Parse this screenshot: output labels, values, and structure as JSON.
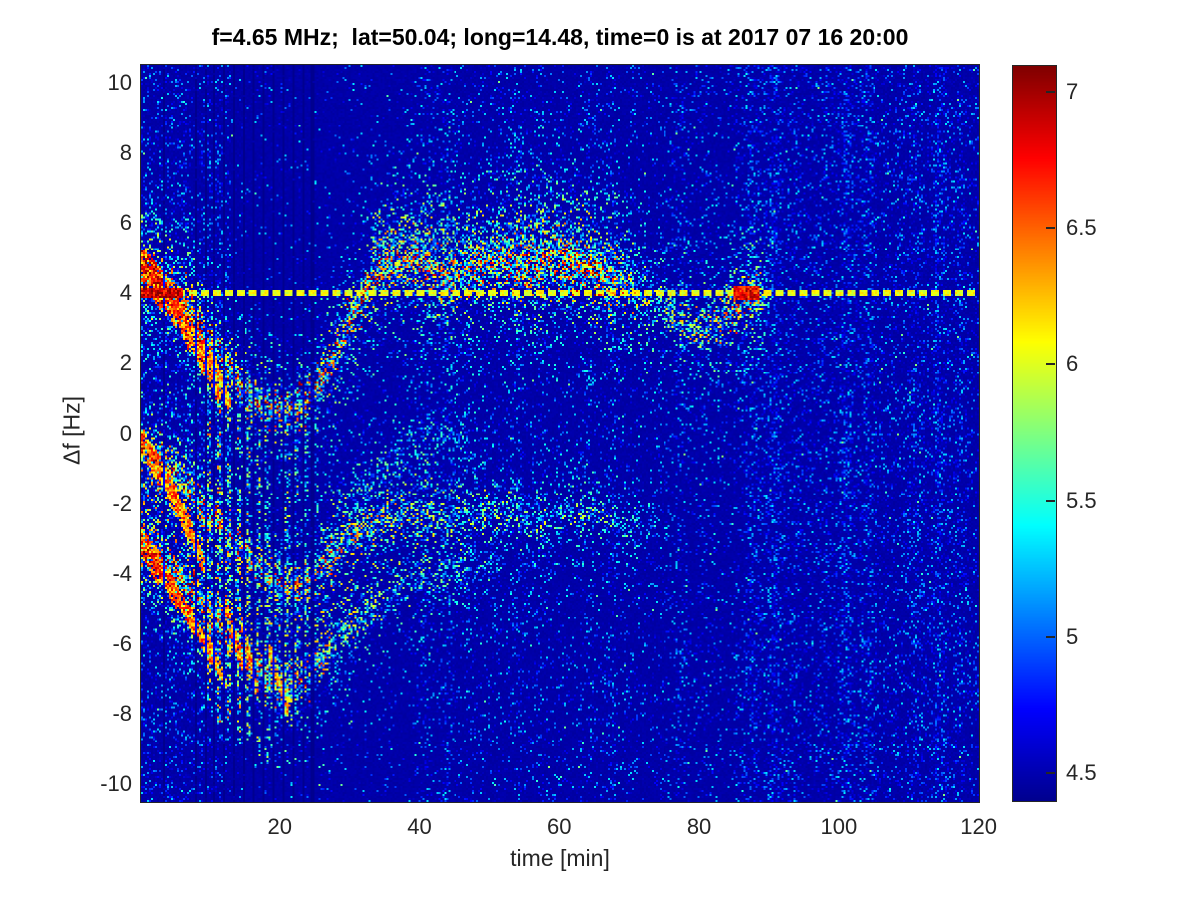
{
  "chart_data": {
    "type": "heatmap",
    "title": "f=4.65 MHz;  lat=50.04; long=14.48, time=0 is at 2017 07 16 20:00",
    "xlabel": "time [min]",
    "ylabel": "Δf [Hz]",
    "xlim": [
      0,
      120.2
    ],
    "ylim": [
      -10.53,
      10.53
    ],
    "xticks": [
      20,
      40,
      60,
      80,
      100,
      120
    ],
    "yticks": [
      10,
      8,
      6,
      4,
      2,
      0,
      -2,
      -4,
      -6,
      -8,
      -10
    ],
    "grid": false,
    "colormap": "jet",
    "caxis": [
      4.39,
      7.11
    ],
    "colorbar": {
      "position": "right",
      "ticks": [
        7,
        6.5,
        6,
        5.5,
        5,
        4.5
      ]
    },
    "background_level": 4.45,
    "carrier_line": {
      "f": 4.0,
      "style": "dashed",
      "level": 6.0,
      "description": "constant dashed reference trace at Δf = +4 Hz across full time range"
    },
    "hot_spots": [
      {
        "t_range": [
          0,
          6
        ],
        "f": 4.05,
        "half_width_hz": 0.14,
        "level": 6.8
      },
      {
        "t_range": [
          85,
          88.6
        ],
        "f": 4.0,
        "half_width_hz": 0.19,
        "level": 6.7
      }
    ],
    "traces": [
      {
        "name": "upper-o-mode-trace",
        "width_hz": 0.45,
        "points": [
          [
            0,
            4.7,
            0.95
          ],
          [
            3,
            4.4,
            0.95
          ],
          [
            6,
            3.8,
            0.95
          ],
          [
            9,
            2.9,
            0.9
          ],
          [
            12,
            2.0,
            0.9
          ],
          [
            15,
            1.2,
            0.9
          ],
          [
            18,
            0.75,
            0.9
          ],
          [
            21,
            0.6,
            0.9
          ],
          [
            24,
            1.0,
            0.9
          ],
          [
            27,
            1.9,
            0.9
          ],
          [
            30,
            3.2,
            0.85
          ],
          [
            33,
            4.4,
            0.85
          ],
          [
            36,
            4.9,
            0.8
          ],
          [
            40,
            4.8,
            0.75
          ],
          [
            44,
            4.5,
            0.7
          ],
          [
            48,
            4.7,
            0.75
          ],
          [
            52,
            4.9,
            0.75
          ],
          [
            56,
            4.7,
            0.8
          ],
          [
            60,
            5.0,
            0.85
          ],
          [
            64,
            4.7,
            0.85
          ],
          [
            67,
            4.4,
            0.8
          ],
          [
            70,
            4.1,
            0.6
          ],
          [
            73,
            3.8,
            0.5
          ],
          [
            76,
            3.4,
            0.5
          ],
          [
            79,
            3.05,
            0.55
          ],
          [
            82,
            3.1,
            0.6
          ],
          [
            85,
            3.5,
            0.75
          ],
          [
            87,
            3.9,
            0.85
          ],
          [
            89,
            4.0,
            0.6
          ],
          [
            91,
            4.0,
            0.0
          ]
        ]
      },
      {
        "name": "upper-cloud-band",
        "width_hz": 0.6,
        "points": [
          [
            33,
            5.3,
            0.35
          ],
          [
            40,
            5.5,
            0.4
          ],
          [
            47,
            5.2,
            0.35
          ],
          [
            54,
            5.6,
            0.4
          ],
          [
            60,
            5.4,
            0.4
          ],
          [
            66,
            5.0,
            0.35
          ],
          [
            70,
            4.8,
            0.2
          ],
          [
            74,
            4.6,
            0.0
          ]
        ]
      },
      {
        "name": "middle-trace",
        "width_hz": 0.4,
        "points": [
          [
            0,
            -0.35,
            0.9
          ],
          [
            3,
            -0.8,
            0.9
          ],
          [
            6,
            -1.4,
            0.85
          ],
          [
            9,
            -2.1,
            0.85
          ],
          [
            12,
            -2.8,
            0.8
          ],
          [
            15,
            -3.5,
            0.8
          ],
          [
            18,
            -4.1,
            0.8
          ],
          [
            21,
            -4.4,
            0.8
          ],
          [
            24,
            -4.2,
            0.75
          ],
          [
            27,
            -3.6,
            0.7
          ],
          [
            30,
            -3.0,
            0.6
          ],
          [
            34,
            -2.5,
            0.55
          ],
          [
            38,
            -2.3,
            0.5
          ],
          [
            44,
            -2.3,
            0.4
          ],
          [
            50,
            -2.25,
            0.4
          ],
          [
            56,
            -2.4,
            0.4
          ],
          [
            64,
            -2.3,
            0.35
          ],
          [
            72,
            -2.5,
            0.25
          ],
          [
            78,
            -2.6,
            0.0
          ]
        ]
      },
      {
        "name": "echo-trace",
        "width_hz": 0.5,
        "points": [
          [
            26,
            -3.2,
            0.25
          ],
          [
            30,
            -2.2,
            0.3
          ],
          [
            34,
            -1.2,
            0.3
          ],
          [
            38,
            -0.5,
            0.3
          ],
          [
            42,
            -0.1,
            0.25
          ],
          [
            47,
            0.0,
            0.15
          ],
          [
            52,
            0.0,
            0.0
          ]
        ]
      },
      {
        "name": "lower-x-mode-trace",
        "width_hz": 0.45,
        "points": [
          [
            0,
            -3.1,
            0.95
          ],
          [
            3,
            -3.6,
            0.9
          ],
          [
            6,
            -4.2,
            0.9
          ],
          [
            9,
            -4.9,
            0.85
          ],
          [
            12,
            -5.6,
            0.85
          ],
          [
            15,
            -6.4,
            0.8
          ],
          [
            18,
            -7.0,
            0.8
          ],
          [
            21,
            -7.3,
            0.75
          ],
          [
            24,
            -6.9,
            0.7
          ],
          [
            27,
            -6.2,
            0.6
          ],
          [
            30,
            -5.5,
            0.5
          ],
          [
            34,
            -4.8,
            0.45
          ],
          [
            38,
            -4.3,
            0.4
          ],
          [
            44,
            -3.9,
            0.3
          ],
          [
            50,
            -3.7,
            0.2
          ],
          [
            56,
            -3.6,
            0.0
          ]
        ]
      }
    ],
    "streaks": [
      [
        0.5,
        4.8,
        3,
        4.0,
        0.5,
        1.0
      ],
      [
        2,
        4.6,
        5,
        3.3,
        0.3,
        0.95
      ],
      [
        4,
        4.2,
        7,
        2.6,
        0.28,
        0.9
      ],
      [
        6,
        3.6,
        9,
        1.9,
        0.25,
        0.85
      ],
      [
        8,
        3.0,
        11,
        1.1,
        0.22,
        0.8
      ],
      [
        10,
        2.3,
        12.5,
        0.9,
        0.2,
        0.7
      ],
      [
        0.3,
        -0.2,
        2.5,
        -1.2,
        0.3,
        0.9
      ],
      [
        2,
        -0.7,
        5,
        -2.0,
        0.28,
        0.85
      ],
      [
        4,
        -1.4,
        7,
        -2.9,
        0.25,
        0.8
      ],
      [
        6,
        -2.2,
        9,
        -3.8,
        0.22,
        0.75
      ],
      [
        0.3,
        -3.1,
        2.5,
        -4.0,
        0.35,
        0.95
      ],
      [
        2,
        -3.5,
        5,
        -4.7,
        0.3,
        0.9
      ],
      [
        4.5,
        -4.3,
        7.5,
        -5.5,
        0.25,
        0.85
      ],
      [
        7,
        -5.1,
        10,
        -6.4,
        0.22,
        0.8
      ],
      [
        9.5,
        -5.9,
        12,
        -7.1,
        0.2,
        0.7
      ],
      [
        12,
        -4.8,
        14.5,
        -6.6,
        0.2,
        0.8
      ],
      [
        14.5,
        -5.4,
        16.5,
        -7.3,
        0.18,
        0.75
      ],
      [
        18.5,
        -6.2,
        21,
        -7.9,
        0.18,
        0.7
      ]
    ],
    "interference_stripes": [
      [
        9.8,
        2.5,
        -8,
        0.8
      ],
      [
        11.2,
        1.8,
        -8.3,
        0.9
      ],
      [
        12.6,
        1.0,
        -8.6,
        0.8
      ],
      [
        14.0,
        0.6,
        -9,
        0.75
      ],
      [
        15.4,
        0.2,
        -9,
        0.7
      ],
      [
        16.8,
        -0.3,
        -9.3,
        0.6
      ],
      [
        18.2,
        -0.8,
        -9.5,
        0.55
      ],
      [
        19.6,
        -3,
        -9.7,
        0.5
      ],
      [
        21,
        0.4,
        -8,
        0.65
      ],
      [
        22.4,
        0.2,
        -8,
        0.6
      ],
      [
        23.8,
        0.6,
        -7,
        0.5
      ],
      [
        25.2,
        0.9,
        -6,
        0.45
      ]
    ],
    "dropout_columns": [
      3.3,
      7.9,
      9.2,
      10.5,
      11.9,
      13.3,
      14.7,
      16.1,
      17.5,
      19.0,
      20.4,
      21.8,
      23.2,
      24.6
    ]
  }
}
